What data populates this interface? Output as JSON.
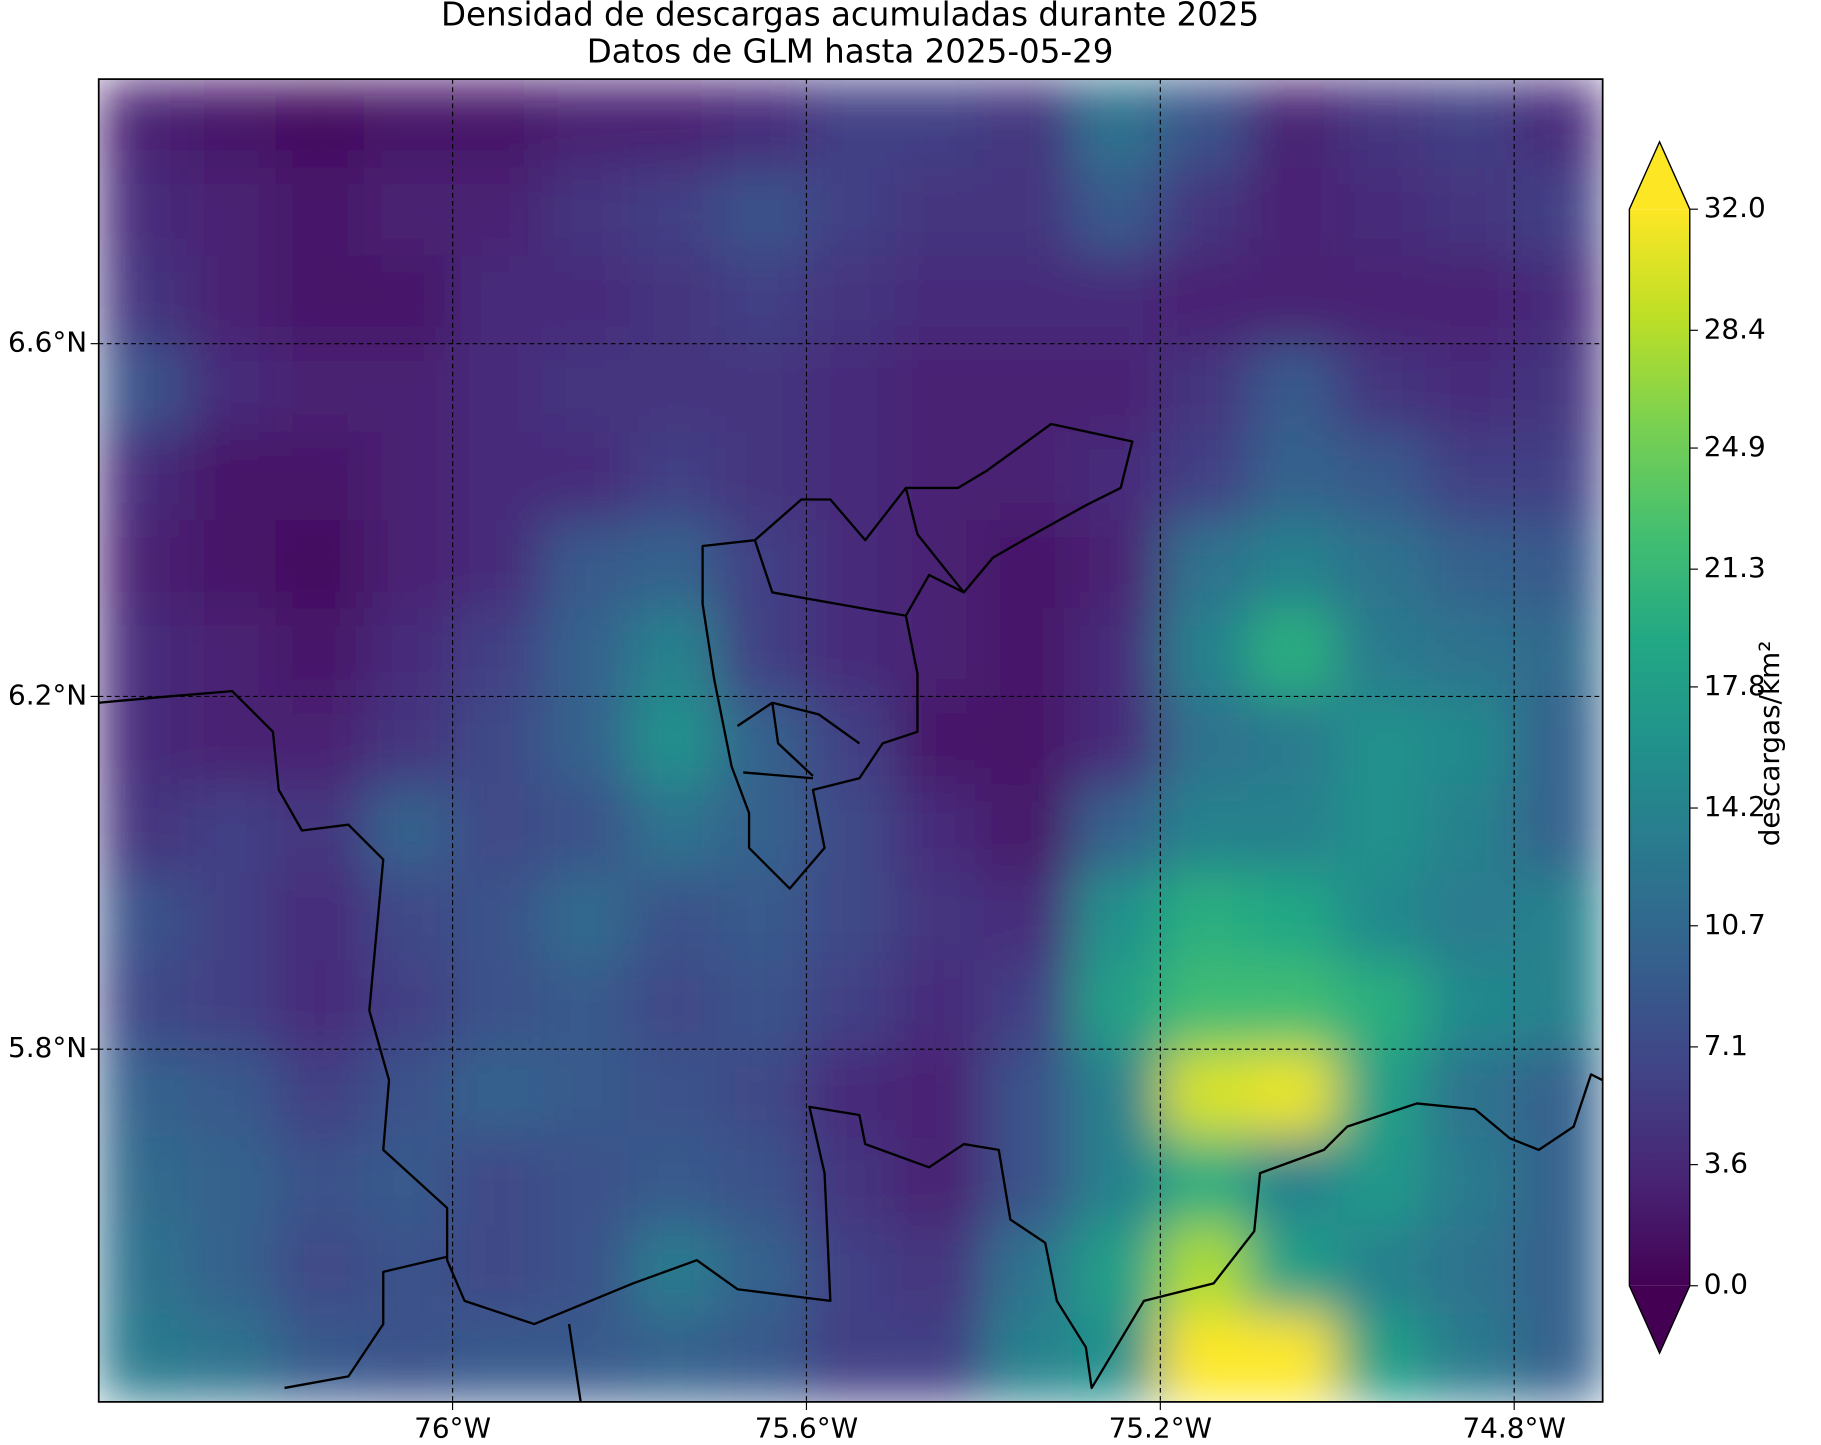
{
  "chart_data": {
    "type": "heatmap",
    "title": "Densidad de descargas acumuladas durante 2025",
    "subtitle": "Datos de GLM hasta 2025-05-29",
    "colorbar_label": "descargas/km²",
    "colormap": "viridis",
    "extend": "both",
    "grid": true,
    "xlim": [
      -76.4,
      -74.7
    ],
    "ylim": [
      5.4,
      6.9
    ],
    "xticks": [
      {
        "value": -76,
        "label": "76°W"
      },
      {
        "value": -75.6,
        "label": "75.6°W"
      },
      {
        "value": -75.2,
        "label": "75.2°W"
      },
      {
        "value": -74.8,
        "label": "74.8°W"
      }
    ],
    "yticks": [
      {
        "value": 5.8,
        "label": "5.8°N"
      },
      {
        "value": 6.2,
        "label": "6.2°N"
      },
      {
        "value": 6.6,
        "label": "6.6°N"
      }
    ],
    "clim": [
      0,
      32
    ],
    "cticks": [
      {
        "value": 0,
        "label": "0.0"
      },
      3.6,
      7.1,
      10.7,
      14.2,
      17.8,
      21.3,
      24.9,
      28.4,
      {
        "value": 32,
        "label": "32.0"
      }
    ],
    "x": [
      -76.35,
      -76.25,
      -76.15,
      -76.05,
      -75.95,
      -75.85,
      -75.75,
      -75.65,
      -75.55,
      -75.45,
      -75.35,
      -75.25,
      -75.15,
      -75.05,
      -74.95,
      -74.85,
      -74.75
    ],
    "y": [
      6.85,
      6.75,
      6.65,
      6.55,
      6.45,
      6.35,
      6.25,
      6.15,
      6.05,
      5.95,
      5.85,
      5.75,
      5.65,
      5.55,
      5.45
    ],
    "values": [
      [
        3,
        2,
        1,
        2,
        2,
        3,
        3,
        4,
        6,
        6,
        5,
        12,
        8,
        3,
        5,
        6,
        4
      ],
      [
        4,
        3,
        2,
        3,
        3,
        5,
        6,
        8,
        6,
        5,
        5,
        9,
        5,
        3,
        4,
        5,
        6
      ],
      [
        5,
        3,
        2,
        2,
        4,
        4,
        5,
        6,
        5,
        4,
        4,
        4,
        3,
        3,
        3,
        3,
        4
      ],
      [
        8,
        4,
        3,
        3,
        4,
        5,
        5,
        5,
        4,
        3,
        3,
        3,
        5,
        9,
        5,
        4,
        5
      ],
      [
        4,
        2,
        2,
        3,
        4,
        4,
        6,
        5,
        4,
        3,
        3,
        4,
        6,
        10,
        9,
        6,
        6
      ],
      [
        3,
        2,
        1,
        3,
        4,
        9,
        10,
        6,
        4,
        3,
        2,
        3,
        12,
        14,
        12,
        10,
        9
      ],
      [
        4,
        3,
        2,
        4,
        6,
        10,
        14,
        6,
        4,
        3,
        2,
        4,
        14,
        20,
        13,
        12,
        11
      ],
      [
        4,
        3,
        3,
        5,
        7,
        10,
        16,
        10,
        6,
        2,
        2,
        4,
        12,
        13,
        16,
        15,
        10
      ],
      [
        5,
        6,
        5,
        10,
        7,
        8,
        12,
        10,
        7,
        4,
        2,
        10,
        14,
        14,
        16,
        14,
        10
      ],
      [
        8,
        6,
        4,
        7,
        8,
        11,
        8,
        9,
        7,
        5,
        4,
        16,
        20,
        19,
        15,
        13,
        14
      ],
      [
        7,
        6,
        4,
        6,
        8,
        9,
        7,
        8,
        6,
        4,
        6,
        18,
        22,
        22,
        20,
        15,
        14
      ],
      [
        10,
        9,
        6,
        8,
        10,
        9,
        8,
        7,
        4,
        3,
        8,
        14,
        30,
        31,
        18,
        12,
        10
      ],
      [
        11,
        10,
        8,
        9,
        7,
        8,
        9,
        8,
        5,
        3,
        8,
        14,
        20,
        14,
        17,
        13,
        10
      ],
      [
        12,
        10,
        7,
        8,
        7,
        8,
        13,
        10,
        6,
        5,
        12,
        18,
        28,
        18,
        14,
        12,
        10
      ],
      [
        13,
        12,
        9,
        8,
        9,
        9,
        10,
        9,
        6,
        6,
        14,
        16,
        32,
        32,
        18,
        13,
        10
      ]
    ]
  }
}
